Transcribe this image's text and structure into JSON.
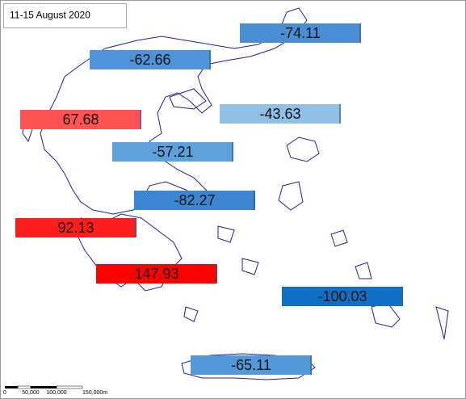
{
  "title": "11-15 August 2020",
  "regions": [
    {
      "value": -74.11,
      "color": "#4a8fd6"
    },
    {
      "value": -62.66,
      "color": "#4f94d8"
    },
    {
      "value": 67.68,
      "color": "#ff5252"
    },
    {
      "value": -43.63,
      "color": "#8fc0e7"
    },
    {
      "value": -57.21,
      "color": "#5ca1dc"
    },
    {
      "value": -82.27,
      "color": "#3b85d1"
    },
    {
      "value": 92.13,
      "color": "#ff1c1c"
    },
    {
      "value": 147.93,
      "color": "#ff0000"
    },
    {
      "value": -100.03,
      "color": "#0d70c4"
    },
    {
      "value": -65.11,
      "color": "#5499da"
    }
  ],
  "scale_bar": {
    "labels": [
      "0",
      "50,000",
      "100,000",
      "150,000m"
    ]
  }
}
